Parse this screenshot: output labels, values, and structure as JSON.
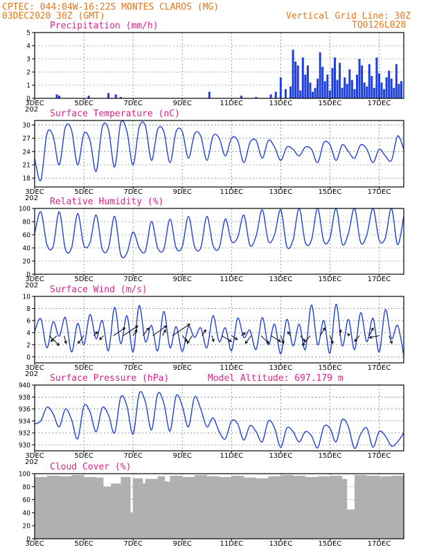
{
  "header": {
    "line1": "CPTEC:   044:04W-16:22S   MONTES CLAROS (MG)",
    "line2_left": "03DEC2020 30Z (GMT)",
    "line2_right": "Vertical Grid Line: 30Z",
    "line3_right": "TQ0126L028"
  },
  "x_axis": {
    "labels": [
      "3DEC",
      "5DEC",
      "7DEC",
      "9DEC",
      "11DEC",
      "13DEC",
      "15DEC",
      "17DEC"
    ],
    "year_fragment": "202"
  },
  "colors": {
    "header": "#e8761a",
    "titles": "#e0208a",
    "series": "#1f3fdb",
    "cloud": "#b0b0b0"
  },
  "chart_data": [
    {
      "type": "bar",
      "title": "Precipitation (mm/h)",
      "ylim": [
        0,
        5
      ],
      "yticks": [
        "0",
        "1",
        "2",
        "3",
        "4",
        "5"
      ],
      "x_unit": "days since 3DEC 30Z",
      "x": [
        0.9,
        1.0,
        2.2,
        3.0,
        3.3,
        3.5,
        7.1,
        8.4,
        9.0,
        9.6,
        9.8,
        10.0,
        10.2,
        10.4,
        10.5,
        10.6,
        10.7,
        10.8,
        10.9,
        11.0,
        11.1,
        11.2,
        11.3,
        11.4,
        11.5,
        11.6,
        11.7,
        11.8,
        11.9,
        12.0,
        12.1,
        12.2,
        12.3,
        12.4,
        12.5,
        12.6,
        12.7,
        12.8,
        12.9,
        13.0,
        13.1,
        13.2,
        13.3,
        13.4,
        13.5,
        13.6,
        13.7,
        13.8,
        13.9,
        14.0,
        14.1,
        14.2,
        14.3,
        14.4,
        14.5,
        14.6,
        14.7,
        14.8,
        14.9
      ],
      "values": [
        0.3,
        0.2,
        0.2,
        0.4,
        0.3,
        0.1,
        0.5,
        0.2,
        0.1,
        0.3,
        0.5,
        1.6,
        0.7,
        0.9,
        3.7,
        2.8,
        2.5,
        0.6,
        3.1,
        1.8,
        2.5,
        1.2,
        0.5,
        0.8,
        1.5,
        3.5,
        2.4,
        1.3,
        1.8,
        0.6,
        2.3,
        3.1,
        1.4,
        2.7,
        0.8,
        1.6,
        1.1,
        2.2,
        1.4,
        0.7,
        1.8,
        3.0,
        2.5,
        1.2,
        0.9,
        2.6,
        1.7,
        0.8,
        3.1,
        1.9,
        1.2,
        0.7,
        1.6,
        2.1,
        1.5,
        0.8,
        2.6,
        1.1,
        1.3
      ]
    },
    {
      "type": "line",
      "title": "Surface Temperature (nC)",
      "ylim": [
        16,
        31
      ],
      "yticks": [
        "18",
        "21",
        "24",
        "27",
        "30"
      ],
      "x_unit": "days since 3DEC 30Z",
      "x": [
        0,
        0.25,
        0.5,
        0.75,
        1,
        1.25,
        1.5,
        1.75,
        2,
        2.25,
        2.5,
        2.75,
        3,
        3.25,
        3.5,
        3.75,
        4,
        4.25,
        4.5,
        4.75,
        5,
        5.25,
        5.5,
        5.75,
        6,
        6.25,
        6.5,
        6.75,
        7,
        7.25,
        7.5,
        7.75,
        8,
        8.25,
        8.5,
        8.75,
        9,
        9.25,
        9.5,
        9.75,
        10,
        10.25,
        10.5,
        10.75,
        11,
        11.25,
        11.5,
        11.75,
        12,
        12.25,
        12.5,
        12.75,
        13,
        13.25,
        13.5,
        13.75,
        14,
        14.25,
        14.5,
        14.75,
        15
      ],
      "values": [
        22.5,
        17.5,
        28.0,
        27.5,
        21.0,
        29.5,
        28.8,
        21.0,
        28.0,
        26.5,
        19.5,
        29.5,
        29.0,
        20.5,
        30.5,
        28.5,
        21.0,
        29.5,
        29.8,
        22.0,
        29.0,
        28.5,
        21.5,
        28.5,
        28.5,
        22.5,
        28.0,
        27.5,
        22.0,
        27.5,
        27.0,
        23.0,
        27.0,
        26.5,
        21.5,
        26.0,
        26.5,
        22.5,
        26.5,
        25.0,
        22.0,
        25.0,
        24.5,
        23.0,
        25.0,
        24.5,
        21.5,
        26.0,
        25.5,
        22.0,
        25.5,
        24.0,
        22.5,
        25.5,
        24.5,
        21.5,
        24.5,
        23.0,
        22.0,
        27.5,
        24.5
      ]
    },
    {
      "type": "line",
      "title": "Relative Humidity (%)",
      "ylim": [
        0,
        100
      ],
      "yticks": [
        "0",
        "20",
        "40",
        "60",
        "80",
        "100"
      ],
      "x_unit": "days since 3DEC 30Z",
      "x": [
        0,
        0.25,
        0.5,
        0.75,
        1,
        1.25,
        1.5,
        1.75,
        2,
        2.25,
        2.5,
        2.75,
        3,
        3.25,
        3.5,
        3.75,
        4,
        4.25,
        4.5,
        4.75,
        5,
        5.25,
        5.5,
        5.75,
        6,
        6.25,
        6.5,
        6.75,
        7,
        7.25,
        7.5,
        7.75,
        8,
        8.25,
        8.5,
        8.75,
        9,
        9.25,
        9.5,
        9.75,
        10,
        10.25,
        10.5,
        10.75,
        11,
        11.25,
        11.5,
        11.75,
        12,
        12.25,
        12.5,
        12.75,
        13,
        13.25,
        13.5,
        13.75,
        14,
        14.25,
        14.5,
        14.75,
        15
      ],
      "values": [
        62,
        95,
        45,
        42,
        95,
        38,
        40,
        92,
        44,
        48,
        90,
        38,
        40,
        88,
        30,
        32,
        64,
        40,
        35,
        80,
        40,
        38,
        84,
        40,
        42,
        88,
        42,
        40,
        88,
        44,
        40,
        84,
        50,
        56,
        90,
        44,
        58,
        98,
        50,
        60,
        98,
        42,
        52,
        100,
        48,
        52,
        100,
        50,
        55,
        100,
        46,
        62,
        100,
        48,
        60,
        100,
        52,
        55,
        100,
        45,
        88
      ]
    },
    {
      "type": "line",
      "title": "Surface Wind (m/s)",
      "ylim": [
        -1,
        10
      ],
      "yticks": [
        "0",
        "2",
        "4",
        "6",
        "8",
        "10"
      ],
      "x_unit": "days since 3DEC 30Z",
      "x": [
        0,
        0.25,
        0.5,
        0.75,
        1,
        1.25,
        1.5,
        1.75,
        2,
        2.25,
        2.5,
        2.75,
        3,
        3.25,
        3.5,
        3.75,
        4,
        4.25,
        4.5,
        4.75,
        5,
        5.25,
        5.5,
        5.75,
        6,
        6.25,
        6.5,
        6.75,
        7,
        7.25,
        7.5,
        7.75,
        8,
        8.25,
        8.5,
        8.75,
        9,
        9.25,
        9.5,
        9.75,
        10,
        10.25,
        10.5,
        10.75,
        11,
        11.25,
        11.5,
        11.75,
        12,
        12.25,
        12.5,
        12.75,
        13,
        13.25,
        13.5,
        13.75,
        14,
        14.25,
        14.5,
        14.75,
        15
      ],
      "values": [
        4.2,
        6.3,
        1.5,
        5.8,
        3.4,
        6.5,
        0.8,
        5.5,
        2.0,
        7.0,
        3.0,
        6.0,
        1.0,
        8.2,
        2.2,
        6.8,
        0.8,
        8.5,
        2.5,
        5.2,
        1.0,
        7.5,
        1.5,
        5.0,
        0.9,
        5.0,
        3.2,
        4.8,
        1.5,
        6.8,
        2.5,
        4.8,
        1.0,
        6.4,
        3.2,
        4.4,
        1.2,
        6.5,
        2.0,
        5.4,
        0.5,
        6.2,
        1.8,
        5.4,
        1.2,
        8.6,
        2.0,
        6.0,
        0.6,
        8.7,
        1.8,
        6.2,
        1.2,
        7.3,
        2.5,
        6.4,
        0.8,
        7.8,
        3.0,
        5.2,
        0.2
      ],
      "arrows": {
        "x": [
          0.6,
          0.9,
          1.2,
          2.0,
          2.4,
          2.8,
          3.2,
          3.6,
          4.0,
          4.4,
          4.8,
          5.2,
          5.6,
          6.0,
          6.4,
          6.8,
          7.2,
          7.6,
          8.0,
          8.4,
          8.8,
          9.2,
          9.6,
          10.0,
          10.4,
          10.8,
          11.2,
          11.6,
          12.0,
          12.4,
          12.8,
          13.2,
          13.6,
          14.0,
          14.4
        ],
        "u": [
          1.0,
          -0.6,
          0.2,
          -0.6,
          0.4,
          -0.4,
          1.2,
          1.5,
          0.4,
          0.6,
          1.4,
          0.3,
          1.8,
          0.5,
          -0.5,
          0.4,
          0.2,
          1.0,
          0.6,
          0.4,
          -0.6,
          0.8,
          1.0,
          0.3,
          -0.3,
          0.5,
          -0.8,
          0.5,
          0.3,
          0.1,
          -0.2,
          -0.5,
          0.4,
          -1.0,
          0.3
        ],
        "v": [
          -1.0,
          -0.6,
          -0.8,
          -0.8,
          0.4,
          -0.4,
          0.8,
          1.0,
          0.6,
          0.8,
          1.0,
          0.6,
          1.2,
          -0.6,
          -0.8,
          0.6,
          -0.6,
          -0.6,
          -0.4,
          0.3,
          -0.8,
          -0.8,
          -0.6,
          -0.8,
          0.4,
          -0.6,
          -1.0,
          0.8,
          -0.8,
          0.6,
          0.2,
          -0.6,
          0.8,
          -0.2,
          -0.8
        ]
      }
    },
    {
      "type": "line",
      "title": "Surface Pressure (hPa)",
      "annotation": "Model Altitude: 697.179 m",
      "ylim": [
        929,
        940
      ],
      "yticks": [
        "930",
        "932",
        "934",
        "936",
        "938",
        "940"
      ],
      "x_unit": "days since 3DEC 30Z",
      "x": [
        0,
        0.25,
        0.5,
        0.75,
        1,
        1.25,
        1.5,
        1.75,
        2,
        2.25,
        2.5,
        2.75,
        3,
        3.25,
        3.5,
        3.75,
        4,
        4.25,
        4.5,
        4.75,
        5,
        5.25,
        5.5,
        5.75,
        6,
        6.25,
        6.5,
        6.75,
        7,
        7.25,
        7.5,
        7.75,
        8,
        8.25,
        8.5,
        8.75,
        9,
        9.25,
        9.5,
        9.75,
        10,
        10.25,
        10.5,
        10.75,
        11,
        11.25,
        11.5,
        11.75,
        12,
        12.25,
        12.5,
        12.75,
        13,
        13.25,
        13.5,
        13.75,
        14,
        14.25,
        14.5,
        14.75,
        15
      ],
      "values": [
        933.5,
        934.0,
        936.3,
        935.2,
        933.0,
        936.0,
        934.2,
        931.0,
        936.5,
        935.5,
        932.2,
        936.2,
        935.0,
        932.0,
        938.0,
        936.5,
        931.8,
        938.6,
        937.2,
        932.5,
        938.5,
        937.0,
        932.3,
        938.2,
        936.5,
        933.0,
        938.0,
        936.0,
        933.0,
        934.5,
        932.2,
        931.0,
        934.0,
        933.5,
        930.8,
        933.2,
        932.2,
        930.5,
        934.0,
        932.8,
        929.6,
        932.8,
        932.2,
        930.5,
        932.2,
        931.5,
        929.5,
        933.0,
        932.8,
        930.5,
        934.2,
        933.0,
        929.4,
        931.8,
        932.8,
        929.6,
        932.2,
        931.5,
        929.8,
        930.5,
        932.0
      ]
    },
    {
      "type": "bar",
      "title": "Cloud Cover (%)",
      "ylim": [
        0,
        100
      ],
      "yticks": [
        "0",
        "20",
        "40",
        "60",
        "80",
        "100"
      ],
      "x_unit": "days since 3DEC 30Z",
      "x": [
        0.0,
        0.5,
        1.0,
        1.5,
        2.0,
        2.5,
        2.8,
        3.1,
        3.5,
        3.9,
        4.0,
        4.4,
        4.5,
        5.0,
        5.3,
        5.5,
        6.0,
        6.5,
        7.0,
        7.5,
        8.0,
        8.5,
        9.0,
        9.5,
        10.0,
        10.5,
        11.0,
        11.5,
        12.0,
        12.5,
        12.7,
        13.0,
        13.5,
        14.0,
        14.5,
        15.0
      ],
      "values": [
        95,
        97,
        96,
        98,
        95,
        94,
        80,
        85,
        95,
        40,
        93,
        85,
        92,
        96,
        88,
        97,
        95,
        98,
        96,
        95,
        97,
        94,
        93,
        96,
        98,
        97,
        95,
        96,
        97,
        92,
        45,
        98,
        97,
        96,
        97,
        98
      ]
    }
  ]
}
